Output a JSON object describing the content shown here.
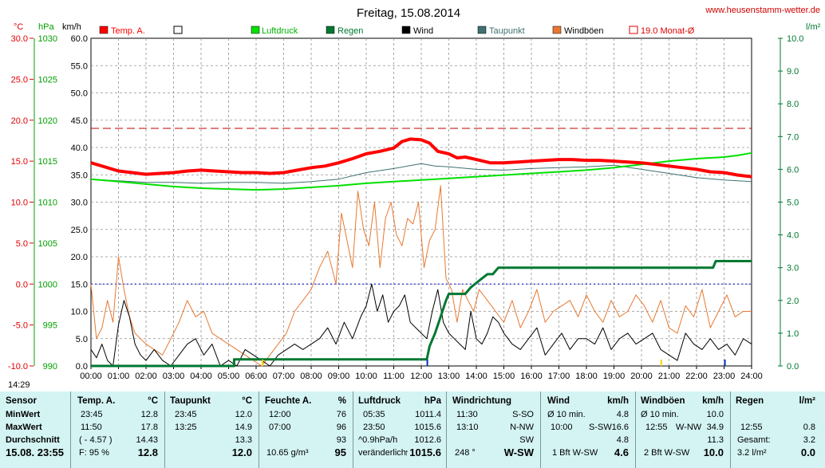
{
  "chart_data": {
    "type": "line",
    "title": "Freitag, 15.08.2014",
    "site": "www.heusenstamm-wetter.de",
    "axis_units": {
      "temp": "°C",
      "pressure": "hPa",
      "wind": "km/h",
      "rain": "l/m²"
    },
    "y_wind": {
      "range": [
        0,
        60
      ],
      "ticks": [
        "0.0",
        "5.0",
        "10.0",
        "15.0",
        "20.0",
        "25.0",
        "30.0",
        "35.0",
        "40.0",
        "45.0",
        "50.0",
        "55.0",
        "60.0"
      ]
    },
    "y_temp": {
      "range": [
        -10,
        30
      ],
      "ticks": [
        "-10.0",
        "-5.0",
        "0.0",
        "5.0",
        "10.0",
        "15.0",
        "20.0",
        "25.0",
        "30.0"
      ]
    },
    "y_pressure": {
      "range": [
        990,
        1030
      ],
      "ticks": [
        "990",
        "995",
        "1000",
        "1005",
        "1010",
        "1015",
        "1020",
        "1025",
        "1030"
      ]
    },
    "y_rain": {
      "range": [
        0,
        10
      ],
      "ticks": [
        "0.0",
        "1.0",
        "2.0",
        "3.0",
        "4.0",
        "5.0",
        "6.0",
        "7.0",
        "8.0",
        "9.0",
        "10.0"
      ]
    },
    "x": {
      "range": [
        0,
        24
      ],
      "ticks": [
        "00:00",
        "01:00",
        "02:00",
        "03:00",
        "04:00",
        "05:00",
        "06:00",
        "07:00",
        "08:00",
        "09:00",
        "10:00",
        "11:00",
        "12:00",
        "13:00",
        "14:00",
        "15:00",
        "16:00",
        "17:00",
        "18:00",
        "19:00",
        "20:00",
        "21:00",
        "22:00",
        "23:00",
        "24:00"
      ]
    },
    "grid": true,
    "legend_position": "top",
    "reference_lines": {
      "month_avg_temp": 19.0,
      "zero_temp": 0.0
    },
    "series": [
      {
        "name": "Temp. A.",
        "axis": "temp",
        "color": "#ff0000",
        "x": [
          0,
          0.5,
          1,
          1.5,
          2,
          2.5,
          3,
          3.5,
          4,
          4.5,
          5,
          5.5,
          6,
          6.5,
          7,
          7.5,
          8,
          8.5,
          9,
          9.5,
          10,
          10.5,
          11,
          11.3,
          11.6,
          12,
          12.3,
          12.6,
          13,
          13.3,
          13.6,
          14,
          14.5,
          15,
          15.5,
          16,
          16.5,
          17,
          17.5,
          18,
          18.5,
          19,
          19.5,
          20,
          20.5,
          21,
          21.5,
          22,
          22.5,
          23,
          23.5,
          24
        ],
        "y": [
          14.8,
          14.3,
          13.8,
          13.6,
          13.4,
          13.5,
          13.6,
          13.8,
          13.9,
          13.8,
          13.7,
          13.6,
          13.6,
          13.5,
          13.6,
          13.9,
          14.2,
          14.4,
          14.8,
          15.3,
          15.9,
          16.2,
          16.6,
          17.4,
          17.7,
          17.6,
          17.2,
          16.2,
          15.9,
          15.4,
          15.5,
          15.2,
          14.8,
          14.8,
          14.9,
          15.0,
          15.1,
          15.2,
          15.2,
          15.1,
          15.1,
          15.0,
          14.9,
          14.8,
          14.6,
          14.4,
          14.2,
          14.0,
          13.7,
          13.6,
          13.3,
          13.1
        ]
      },
      {
        "name": "Luftdruck",
        "axis": "pressure",
        "color": "#00e000",
        "x": [
          0,
          1,
          2,
          3,
          4,
          5,
          6,
          7,
          8,
          9,
          10,
          11,
          12,
          13,
          14,
          15,
          16,
          17,
          18,
          19,
          20,
          21,
          22,
          23,
          23.5,
          24
        ],
        "y": [
          1012.8,
          1012.5,
          1012.2,
          1011.9,
          1011.7,
          1011.6,
          1011.5,
          1011.6,
          1011.8,
          1012.0,
          1012.3,
          1012.5,
          1012.7,
          1012.9,
          1013.1,
          1013.3,
          1013.5,
          1013.7,
          1013.9,
          1014.2,
          1014.6,
          1015.0,
          1015.3,
          1015.5,
          1015.7,
          1016.0
        ]
      },
      {
        "name": "Regen",
        "axis": "rain",
        "color": "#007830",
        "x": [
          0,
          5.2,
          5.2,
          12.2,
          12.3,
          12.5,
          12.7,
          12.9,
          13.0,
          13.6,
          13.8,
          14.1,
          14.4,
          14.6,
          14.8,
          15.0,
          22.6,
          22.7,
          24.0
        ],
        "y": [
          0,
          0,
          0.2,
          0.2,
          0.6,
          1.0,
          1.5,
          2.0,
          2.2,
          2.2,
          2.4,
          2.6,
          2.8,
          2.8,
          3.0,
          3.0,
          3.0,
          3.2,
          3.2
        ]
      },
      {
        "name": "Wind",
        "axis": "wind",
        "color": "#000000",
        "x": [
          0,
          0.2,
          0.4,
          0.6,
          0.8,
          1.0,
          1.2,
          1.4,
          1.6,
          1.8,
          2.0,
          2.3,
          2.6,
          2.9,
          3.2,
          3.5,
          3.8,
          4.1,
          4.4,
          4.7,
          5.0,
          5.3,
          5.6,
          5.9,
          6.2,
          6.5,
          6.8,
          7.1,
          7.4,
          7.7,
          8.0,
          8.3,
          8.6,
          8.9,
          9.2,
          9.5,
          9.8,
          10.0,
          10.2,
          10.4,
          10.6,
          10.8,
          11.0,
          11.2,
          11.4,
          11.6,
          11.8,
          12.0,
          12.2,
          12.4,
          12.6,
          12.8,
          13.0,
          13.2,
          13.4,
          13.6,
          13.8,
          14.0,
          14.2,
          14.4,
          14.6,
          14.8,
          15.0,
          15.3,
          15.6,
          15.9,
          16.2,
          16.5,
          16.8,
          17.1,
          17.4,
          17.7,
          18.0,
          18.3,
          18.6,
          18.9,
          19.2,
          19.5,
          19.8,
          20.1,
          20.4,
          20.7,
          21.0,
          21.3,
          21.6,
          21.9,
          22.2,
          22.5,
          22.8,
          23.1,
          23.4,
          23.7,
          24.0
        ],
        "y": [
          3,
          1.5,
          4,
          1,
          0,
          7.5,
          12,
          9,
          4,
          2,
          1,
          3,
          1,
          0,
          2,
          4,
          5,
          2,
          4,
          0,
          1,
          0,
          3,
          2,
          1,
          0,
          2,
          3,
          4,
          3,
          4,
          5,
          7,
          4,
          8,
          5,
          9,
          11,
          15,
          10,
          13,
          8,
          10,
          11,
          13,
          8,
          7,
          6,
          5,
          10,
          14,
          8,
          6,
          5,
          4,
          3,
          10,
          5,
          4,
          6,
          9,
          8,
          6,
          4,
          3,
          5,
          7,
          2,
          4,
          6,
          3,
          5,
          5,
          4,
          7,
          3,
          5,
          6,
          4,
          5,
          6,
          3,
          2,
          1,
          6,
          4,
          3,
          5,
          3,
          4,
          2,
          5,
          4
        ]
      },
      {
        "name": "Taupunkt",
        "axis": "temp",
        "color": "#407070",
        "x": [
          0,
          1,
          2,
          3,
          4,
          5,
          6,
          7,
          8,
          9,
          10,
          11,
          11.5,
          12,
          12.5,
          13,
          14,
          15,
          16,
          17,
          18,
          19,
          20,
          21,
          22,
          23,
          24
        ],
        "y": [
          12.8,
          12.6,
          12.4,
          12.4,
          12.3,
          12.4,
          12.4,
          12.3,
          12.5,
          12.8,
          13.6,
          14.1,
          14.4,
          14.7,
          14.4,
          14.3,
          14.0,
          13.9,
          14.1,
          14.2,
          14.3,
          14.5,
          14.0,
          13.5,
          13.0,
          12.7,
          12.5
        ]
      },
      {
        "name": "Windböen",
        "axis": "wind",
        "color": "#e87830",
        "x": [
          0,
          0.2,
          0.4,
          0.6,
          0.8,
          1.0,
          1.2,
          1.4,
          1.6,
          1.8,
          2.0,
          2.3,
          2.6,
          2.9,
          3.2,
          3.5,
          3.8,
          4.1,
          4.4,
          4.7,
          5.0,
          5.3,
          5.6,
          5.9,
          6.2,
          6.5,
          6.8,
          7.1,
          7.4,
          7.7,
          8.0,
          8.3,
          8.6,
          8.9,
          9.1,
          9.3,
          9.5,
          9.7,
          9.9,
          10.1,
          10.3,
          10.5,
          10.7,
          10.9,
          11.1,
          11.3,
          11.5,
          11.7,
          11.9,
          12.1,
          12.3,
          12.5,
          12.7,
          12.9,
          13.1,
          13.3,
          13.5,
          13.7,
          13.9,
          14.1,
          14.4,
          14.7,
          15.0,
          15.3,
          15.6,
          15.9,
          16.2,
          16.5,
          16.8,
          17.1,
          17.4,
          17.7,
          18.0,
          18.3,
          18.6,
          18.9,
          19.2,
          19.5,
          19.8,
          20.1,
          20.4,
          20.7,
          21.0,
          21.3,
          21.6,
          21.9,
          22.2,
          22.5,
          22.8,
          23.1,
          23.4,
          23.7,
          24.0
        ],
        "y": [
          15,
          5,
          7,
          12,
          8,
          20,
          14,
          9,
          6,
          5,
          4,
          3,
          2,
          5,
          8,
          12,
          9,
          10,
          6,
          5,
          4,
          3,
          2,
          1,
          0,
          2,
          4,
          6,
          10,
          12,
          14,
          18,
          21,
          15,
          28,
          23,
          18,
          32,
          25,
          22,
          30,
          18,
          27,
          30,
          24,
          22,
          27,
          26,
          30,
          18,
          23,
          25,
          33,
          16,
          14,
          8,
          14,
          12,
          10,
          14,
          12,
          10,
          8,
          12,
          7,
          10,
          14,
          8,
          10,
          11,
          12,
          9,
          13,
          10,
          8,
          12,
          9,
          10,
          13,
          11,
          8,
          12,
          7,
          6,
          11,
          9,
          14,
          7,
          10,
          13,
          9,
          10,
          10
        ]
      }
    ]
  },
  "legend": {
    "temp": "Temp. A.",
    "blank": "",
    "pressure": "Luftdruck",
    "rain": "Regen",
    "wind": "Wind",
    "dew": "Taupunkt",
    "gust": "Windböen",
    "month": "19.0 Monat-Ø"
  },
  "markers": {
    "left": "14:29",
    "m1": "06:14",
    "m2": "12:13",
    "m3": "20:43",
    "m4": "23:02"
  },
  "table": {
    "sensor": {
      "header": "Sensor",
      "min": "MinWert",
      "max": "MaxWert",
      "avg": "Durchschnitt",
      "now": "15.08. 23:55"
    },
    "temp": {
      "header": "Temp. A.",
      "unit": "°C",
      "min_time": "23:45",
      "min_val": "12.8",
      "max_time": "11:50",
      "max_val": "17.8",
      "avg_note": "( - 4.57 )",
      "avg_val": "14.43",
      "now_note": "F: 95 %",
      "now_val": "12.8"
    },
    "dew": {
      "header": "Taupunkt",
      "unit": "°C",
      "min_time": "23:45",
      "min_val": "12.0",
      "max_time": "13:25",
      "max_val": "14.9",
      "avg_val": "13.3",
      "now_val": "12.0"
    },
    "hum": {
      "header": "Feuchte A.",
      "unit": "%",
      "min_time": "12:00",
      "min_val": "76",
      "max_time": "07:00",
      "max_val": "96",
      "avg_val": "93",
      "now_note": "10.65 g/m³",
      "now_val": "95"
    },
    "press": {
      "header": "Luftdruck",
      "unit": "hPa",
      "min_time": "05:35",
      "min_val": "1011.4",
      "max_time": "23:50",
      "max_val": "1015.6",
      "avg_note": "^0.9hPa/h",
      "avg_val": "1012.6",
      "now_note": "veränderlich",
      "now_val": "1015.6"
    },
    "dir": {
      "header": "Windrichtung",
      "min_time": "11:30",
      "min_val": "S-SO",
      "max_time": "13:10",
      "max_val": "N-NW",
      "avg_val": "SW",
      "now_note": "248 °",
      "now_val": "W-SW"
    },
    "wind": {
      "header": "Wind",
      "unit": "km/h",
      "min_time": "Ø 10 min.",
      "min_val": "4.8",
      "max_time": "10:00",
      "max_dir": "S-SW",
      "max_val": "16.6",
      "avg_val": "4.8",
      "now_note": "1 Bft W-SW",
      "now_val": "4.6"
    },
    "gust": {
      "header": "Windböen",
      "unit": "km/h",
      "min_time": "Ø 10 min.",
      "min_val": "10.0",
      "max_time": "12:55",
      "max_dir": "W-NW",
      "max_val": "34.9",
      "avg_val": "11.3",
      "now_note": "2 Bft W-SW",
      "now_val": "10.0"
    },
    "rain": {
      "header": "Regen",
      "unit": "l/m²",
      "max_time": "12:55",
      "max_val": "0.8",
      "avg_note": "Gesamt:",
      "avg_val": "3.2",
      "now_note": "3.2 l/m²",
      "now_val": "0.0"
    }
  }
}
